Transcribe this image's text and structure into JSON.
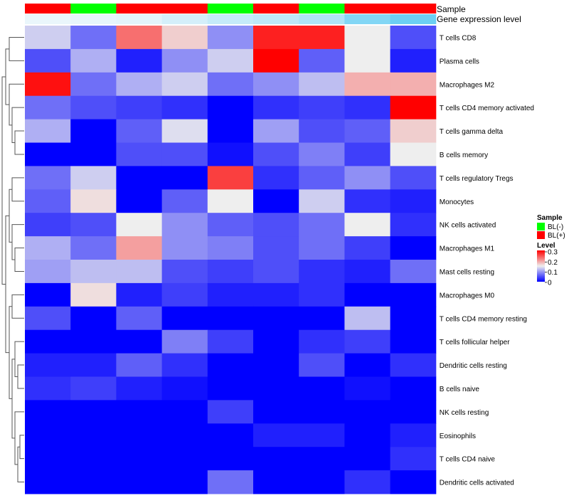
{
  "chart_data": {
    "type": "heatmap",
    "annotations": {
      "sample": {
        "label": "Sample",
        "values": [
          "BL(+)",
          "BL(-)",
          "BL(+)",
          "BL(+)",
          "BL(-)",
          "BL(+)",
          "BL(-)",
          "BL(+)",
          "BL(+)"
        ]
      },
      "expression_level": {
        "label": "Gene expression level",
        "values": [
          0.0,
          0.02,
          0.05,
          0.15,
          0.25,
          0.3,
          0.4,
          0.7,
          0.85
        ]
      }
    },
    "rows": [
      "T cells CD8",
      "Plasma cells",
      "Macrophages M2",
      "T cells CD4 memory activated",
      "T cells gamma delta",
      "B cells memory",
      "T cells regulatory  Tregs",
      "Monocytes",
      "NK cells activated",
      "Macrophages M1",
      "Mast cells resting",
      "Macrophages M0",
      "T cells CD4 memory resting",
      "T cells follicular helper",
      "Dendritic cells resting",
      "B cells naive",
      "NK cells resting",
      "Eosinophils",
      "T cells CD4 naive",
      "Dendritic cells activated"
    ],
    "values": [
      [
        0.13,
        0.07,
        0.23,
        0.17,
        0.09,
        0.28,
        0.28,
        0.15,
        0.05
      ],
      [
        0.05,
        0.11,
        0.02,
        0.09,
        0.13,
        0.3,
        0.06,
        0.15,
        0.02
      ],
      [
        0.29,
        0.07,
        0.11,
        0.13,
        0.07,
        0.09,
        0.12,
        0.19,
        0.19
      ],
      [
        0.07,
        0.05,
        0.04,
        0.03,
        0.0,
        0.03,
        0.04,
        0.03,
        0.3
      ],
      [
        0.11,
        0.0,
        0.06,
        0.14,
        0.0,
        0.1,
        0.05,
        0.06,
        0.17
      ],
      [
        0.0,
        0.0,
        0.05,
        0.05,
        0.01,
        0.05,
        0.08,
        0.04,
        0.15
      ],
      [
        0.07,
        0.13,
        0.0,
        0.0,
        0.26,
        0.03,
        0.06,
        0.09,
        0.05
      ],
      [
        0.06,
        0.16,
        0.0,
        0.06,
        0.15,
        0.0,
        0.13,
        0.03,
        0.02
      ],
      [
        0.04,
        0.05,
        0.15,
        0.09,
        0.06,
        0.05,
        0.07,
        0.15,
        0.03
      ],
      [
        0.11,
        0.07,
        0.2,
        0.09,
        0.08,
        0.05,
        0.07,
        0.04,
        0.0
      ],
      [
        0.1,
        0.12,
        0.12,
        0.05,
        0.04,
        0.05,
        0.03,
        0.02,
        0.07
      ],
      [
        0.0,
        0.16,
        0.02,
        0.04,
        0.02,
        0.02,
        0.03,
        0.0,
        0.0
      ],
      [
        0.05,
        0.0,
        0.06,
        0.0,
        0.0,
        0.0,
        0.0,
        0.12,
        0.0
      ],
      [
        0.0,
        0.0,
        0.0,
        0.08,
        0.04,
        0.0,
        0.03,
        0.04,
        0.0
      ],
      [
        0.02,
        0.02,
        0.06,
        0.03,
        0.0,
        0.0,
        0.05,
        0.0,
        0.03
      ],
      [
        0.03,
        0.04,
        0.02,
        0.01,
        0.0,
        0.0,
        0.0,
        0.01,
        0.0
      ],
      [
        0.0,
        0.0,
        0.0,
        0.0,
        0.04,
        0.0,
        0.0,
        0.0,
        0.0
      ],
      [
        0.0,
        0.0,
        0.0,
        0.0,
        0.0,
        0.02,
        0.02,
        0.0,
        0.02
      ],
      [
        0.0,
        0.0,
        0.0,
        0.0,
        0.0,
        0.0,
        0.0,
        0.0,
        0.03
      ],
      [
        0.0,
        0.0,
        0.0,
        0.0,
        0.07,
        0.0,
        0.0,
        0.03,
        0.0
      ]
    ],
    "color_scale": {
      "stops": [
        {
          "value": 0.0,
          "color": "#0000ff"
        },
        {
          "value": 0.15,
          "color": "#eeeeee"
        },
        {
          "value": 0.3,
          "color": "#ff0000"
        }
      ]
    },
    "anno_scale": {
      "stops": [
        {
          "value": 0.0,
          "color": "#eaf6fb"
        },
        {
          "value": 1.0,
          "color": "#56c8f2"
        }
      ]
    },
    "legends": {
      "sample": {
        "title": "Sample",
        "items": [
          {
            "label": "BL(-)",
            "color": "#00ff00"
          },
          {
            "label": "BL(+)",
            "color": "#ff0000"
          }
        ]
      },
      "level": {
        "title": "Level",
        "ticks": [
          "0.3",
          "0.2",
          "0.1",
          "0"
        ]
      }
    },
    "sample_colors": {
      "BL(-)": "#00ff00",
      "BL(+)": "#ff0000"
    },
    "legend_placement": "right"
  }
}
